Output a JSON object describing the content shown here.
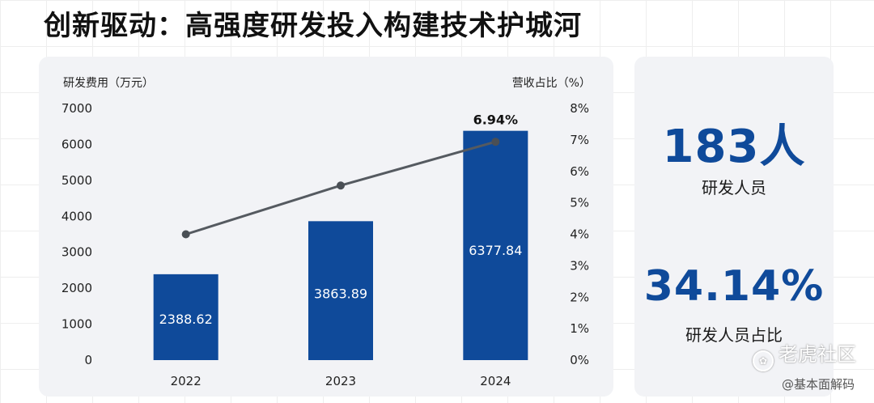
{
  "title": "创新驱动：高强度研发投入构建技术护城河",
  "chart_data": {
    "type": "bar",
    "categories": [
      "2022",
      "2023",
      "2024"
    ],
    "series": [
      {
        "name": "研发费用（万元）",
        "type": "bar",
        "axis": "left",
        "values": [
          2388.62,
          3863.89,
          6377.84
        ],
        "labels": [
          "2388.62",
          "3863.89",
          "6377.84"
        ]
      },
      {
        "name": "营收占比（%）",
        "type": "line",
        "axis": "right",
        "values": [
          4.0,
          5.55,
          6.94
        ]
      }
    ],
    "left_axis": {
      "label": "研发费用（万元）",
      "range": [
        0,
        7000
      ],
      "ticks": [
        "0",
        "1000",
        "2000",
        "3000",
        "4000",
        "5000",
        "6000",
        "7000"
      ]
    },
    "right_axis": {
      "label": "营收占比（%）",
      "range": [
        0,
        8
      ],
      "ticks": [
        "0%",
        "1%",
        "2%",
        "3%",
        "4%",
        "5%",
        "6%",
        "7%",
        "8%"
      ]
    },
    "annotation": "6.94%",
    "colors": {
      "bar": "#0f4a9a",
      "line": "#555a60",
      "text": "#222222"
    }
  },
  "stats": [
    {
      "value": "183人",
      "label": "研发人员"
    },
    {
      "value": "34.14%",
      "label": "研发人员占比"
    }
  ],
  "watermarks": {
    "main": "老虎社区",
    "paw_icon": "paw-icon",
    "sub": "@基本面解码"
  }
}
